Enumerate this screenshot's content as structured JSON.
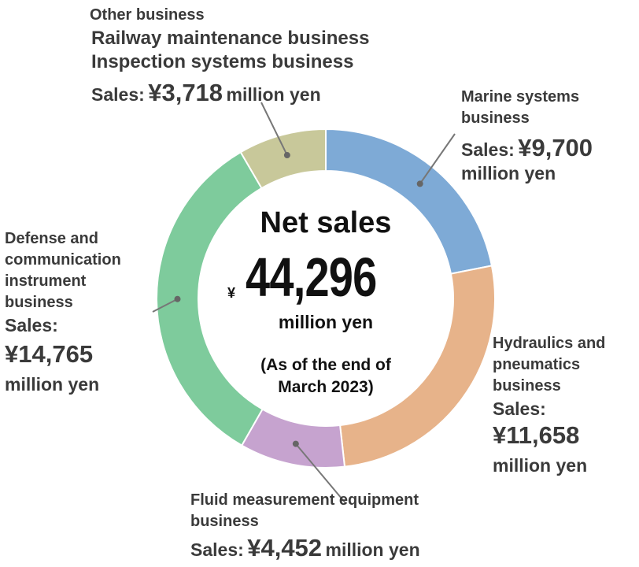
{
  "chart_data": {
    "type": "pie",
    "title": "Net sales",
    "total": {
      "currency": "¥",
      "value": "44,296",
      "unit": "million yen"
    },
    "note_line1": "(As of the end of",
    "note_line2": "March 2023)",
    "slices": [
      {
        "name": "Marine systems business",
        "value": 9700,
        "color": "#7eaad6"
      },
      {
        "name": "Hydraulics and pneumatics business",
        "value": 11658,
        "color": "#e7b38a"
      },
      {
        "name": "Fluid measurement equipment business",
        "value": 4452,
        "color": "#c6a3cf"
      },
      {
        "name": "Defense and communication instrument business",
        "value": 14765,
        "color": "#7ecb9c"
      },
      {
        "name": "Other business",
        "value": 3718,
        "color": "#c8c89a"
      }
    ]
  },
  "labels": {
    "other": {
      "line1": "Other business",
      "line2": "Railway maintenance business",
      "line3": "Inspection systems business",
      "sales_prefix": "Sales:",
      "sales_value": "¥3,718",
      "sales_unit": "million yen"
    },
    "marine": {
      "line1": "Marine systems",
      "line2": "business",
      "sales_prefix": "Sales:",
      "sales_value": "¥9,700",
      "sales_unit": "million yen"
    },
    "hydraulics": {
      "line1": "Hydraulics and",
      "line2": "pneumatics",
      "line3": "business",
      "sales_prefix": "Sales:",
      "sales_value": "¥11,658",
      "sales_unit": "million yen"
    },
    "fluid": {
      "line1": "Fluid measurement equipment",
      "line2": "business",
      "sales_prefix": "Sales:",
      "sales_value": "¥4,452",
      "sales_unit": "million yen"
    },
    "defense": {
      "line1": "Defense and",
      "line2": "communication",
      "line3": "instrument",
      "line4": "business",
      "sales_prefix": "Sales:",
      "sales_value": "¥14,765",
      "sales_unit": "million yen"
    }
  }
}
